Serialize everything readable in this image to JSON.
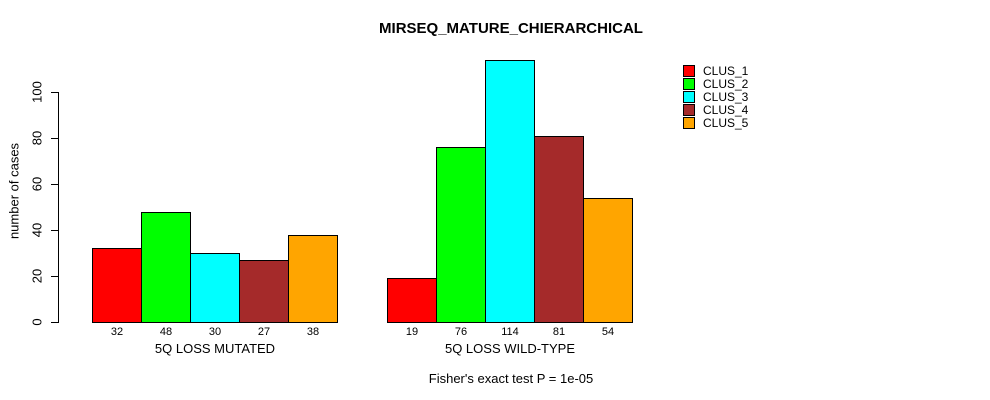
{
  "title": "MIRSEQ_MATURE_CHIERARCHICAL",
  "footer": "Fisher's exact test P = 1e-05",
  "y_axis": {
    "label": "number of cases",
    "ticks": [
      0,
      20,
      40,
      60,
      80,
      100
    ]
  },
  "legend": {
    "position": "right",
    "items": [
      {
        "label": "CLUS_1",
        "color": "#FF0000"
      },
      {
        "label": "CLUS_2",
        "color": "#00FF00"
      },
      {
        "label": "CLUS_3",
        "color": "#00FFFF"
      },
      {
        "label": "CLUS_4",
        "color": "#A52A2A"
      },
      {
        "label": "CLUS_5",
        "color": "#FFA500"
      }
    ]
  },
  "chart_data": {
    "type": "bar",
    "title": "MIRSEQ_MATURE_CHIERARCHICAL",
    "xlabel": "",
    "ylabel": "number of cases",
    "ylim": [
      0,
      115
    ],
    "grid": false,
    "legend_position": "right",
    "bar_value_labels": true,
    "categories": [
      "5Q LOSS MUTATED",
      "5Q LOSS WILD-TYPE"
    ],
    "series": [
      {
        "name": "CLUS_1",
        "color": "#FF0000",
        "values": [
          32,
          19
        ]
      },
      {
        "name": "CLUS_2",
        "color": "#00FF00",
        "values": [
          48,
          76
        ]
      },
      {
        "name": "CLUS_3",
        "color": "#00FFFF",
        "values": [
          30,
          114
        ]
      },
      {
        "name": "CLUS_4",
        "color": "#A52A2A",
        "values": [
          27,
          81
        ]
      },
      {
        "name": "CLUS_5",
        "color": "#FFA500",
        "values": [
          38,
          54
        ]
      }
    ],
    "annotation": "Fisher's exact test P = 1e-05"
  }
}
